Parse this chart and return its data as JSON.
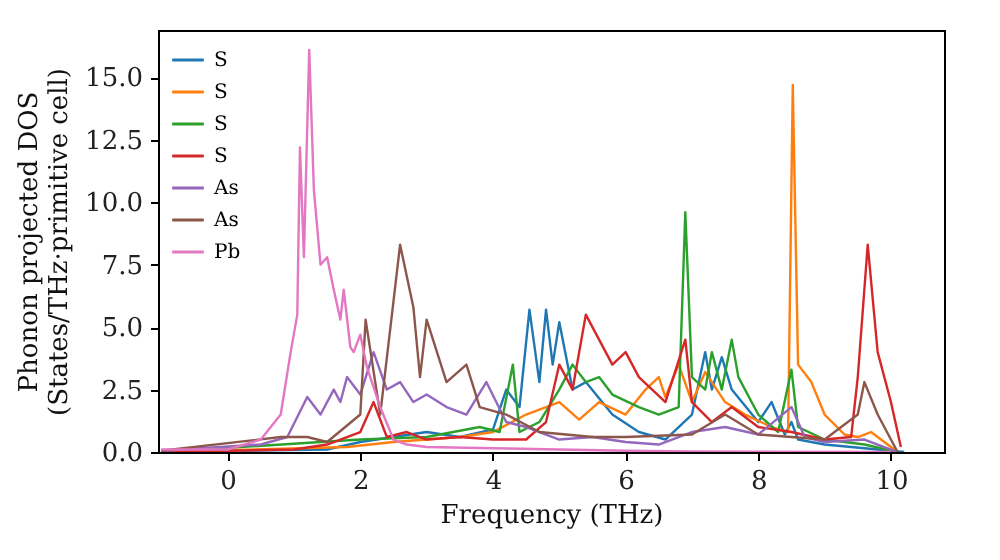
{
  "chart_data": {
    "type": "line",
    "xlabel": "Frequency (THz)",
    "ylabel": "Phonon projected DOS\n(States/THz·primitive cell)",
    "xlim": [
      -1.05,
      10.8
    ],
    "ylim": [
      0,
      16.9
    ],
    "xticks": [
      0,
      2,
      4,
      6,
      8,
      10
    ],
    "yticks": [
      {
        "value": 0,
        "label": "0.0"
      },
      {
        "value": 2.5,
        "label": "2.5"
      },
      {
        "value": 5,
        "label": "5.0"
      },
      {
        "value": 7.5,
        "label": "7.5"
      },
      {
        "value": 10,
        "label": "10.0"
      },
      {
        "value": 12.5,
        "label": "12.5"
      },
      {
        "value": 15,
        "label": "15.0"
      }
    ],
    "grid": false,
    "legend": "top left",
    "series": [
      {
        "name": "S",
        "color": "#1f77b4",
        "x": [
          -1,
          1.5,
          2,
          3,
          3.5,
          4,
          4.2,
          4.4,
          4.55,
          4.7,
          4.8,
          4.9,
          5.0,
          5.2,
          5.4,
          5.8,
          6.2,
          6.6,
          7.0,
          7.2,
          7.3,
          7.45,
          7.6,
          8.0,
          8.2,
          8.4,
          8.5,
          8.6,
          9.0,
          10,
          10.2
        ],
        "values": [
          0,
          0.1,
          0.4,
          0.8,
          0.6,
          0.9,
          2.5,
          1.8,
          5.7,
          2.8,
          5.7,
          3.5,
          5.2,
          2.5,
          2.8,
          1.5,
          0.8,
          0.5,
          1.5,
          4.0,
          2.5,
          3.8,
          2.5,
          1.2,
          2.0,
          0.7,
          1.2,
          0.5,
          0.3,
          0.05,
          0
        ]
      },
      {
        "name": "S",
        "color": "#ff7f0e",
        "x": [
          -1,
          1.8,
          2.5,
          3.5,
          4,
          4.5,
          5,
          5.3,
          5.6,
          6,
          6.3,
          6.5,
          6.6,
          6.8,
          7.0,
          7.2,
          7.5,
          7.8,
          8.2,
          8.45,
          8.52,
          8.6,
          8.8,
          9.0,
          9.3,
          9.5,
          9.7,
          10,
          10.1
        ],
        "values": [
          0,
          0.2,
          0.4,
          0.6,
          0.8,
          1.5,
          2.0,
          1.3,
          2.0,
          1.5,
          2.5,
          3.0,
          2.2,
          3.5,
          2.0,
          3.2,
          2.0,
          1.5,
          1.0,
          0.8,
          14.7,
          3.5,
          2.8,
          1.5,
          0.7,
          0.6,
          0.8,
          0.2,
          0
        ]
      },
      {
        "name": "S",
        "color": "#2ca02c",
        "x": [
          -1,
          2,
          3,
          3.8,
          4.1,
          4.3,
          4.4,
          4.7,
          5.0,
          5.2,
          5.4,
          5.6,
          5.8,
          6.2,
          6.5,
          6.8,
          6.9,
          7.0,
          7.2,
          7.3,
          7.45,
          7.6,
          7.7,
          8.0,
          8.3,
          8.5,
          8.6,
          9.0,
          9.6,
          10.1
        ],
        "values": [
          0,
          0.5,
          0.6,
          1.0,
          0.8,
          3.5,
          0.8,
          1.2,
          2.5,
          3.5,
          2.8,
          3.0,
          2.3,
          1.8,
          1.5,
          1.8,
          9.6,
          3.0,
          2.5,
          4.0,
          2.5,
          4.5,
          3.0,
          1.5,
          0.8,
          3.3,
          1.0,
          0.5,
          0.3,
          0
        ]
      },
      {
        "name": "S",
        "color": "#d62728",
        "x": [
          -1,
          1.0,
          1.5,
          2.0,
          2.2,
          2.4,
          2.7,
          3.0,
          3.5,
          4.0,
          4.5,
          4.8,
          5.0,
          5.2,
          5.4,
          5.6,
          5.8,
          6.0,
          6.2,
          6.4,
          6.6,
          6.9,
          7.0,
          7.3,
          7.6,
          8.0,
          8.5,
          9.0,
          9.4,
          9.5,
          9.65,
          9.8,
          10.0,
          10.15
        ],
        "values": [
          0,
          0.1,
          0.3,
          0.8,
          2.0,
          0.6,
          0.8,
          0.5,
          0.6,
          0.5,
          0.5,
          1.2,
          3.5,
          2.5,
          5.5,
          4.5,
          3.5,
          4.0,
          3.0,
          2.5,
          2.0,
          4.5,
          2.0,
          1.2,
          1.8,
          1.0,
          0.8,
          0.5,
          0.6,
          3.0,
          8.3,
          4.0,
          2.0,
          0.2
        ]
      },
      {
        "name": "As",
        "color": "#9467bd",
        "x": [
          -1,
          0.5,
          0.9,
          1.2,
          1.4,
          1.6,
          1.7,
          1.8,
          2.0,
          2.2,
          2.4,
          2.6,
          2.8,
          3.0,
          3.3,
          3.6,
          3.9,
          4.2,
          4.5,
          5,
          5.5,
          6,
          6.5,
          7,
          7.5,
          8,
          8.5,
          8.7,
          9.0,
          9.6,
          10,
          10.1
        ],
        "values": [
          0.05,
          0.3,
          0.6,
          2.2,
          1.5,
          2.5,
          2.0,
          3.0,
          2.3,
          4.0,
          2.5,
          2.8,
          2.0,
          2.3,
          1.8,
          1.5,
          2.8,
          1.2,
          1.0,
          0.5,
          0.6,
          0.4,
          0.3,
          0.8,
          1.0,
          0.7,
          1.8,
          0.6,
          0.4,
          0.5,
          0.1,
          0
        ]
      },
      {
        "name": "As",
        "color": "#8c564b",
        "x": [
          -1,
          0.8,
          1.2,
          1.5,
          2.0,
          2.08,
          2.3,
          2.6,
          2.8,
          2.9,
          3.0,
          3.3,
          3.6,
          3.8,
          4.2,
          4.7,
          5.5,
          6,
          7,
          7.5,
          8,
          8.5,
          9,
          9.5,
          9.6,
          9.8,
          10,
          10.1
        ],
        "values": [
          0.05,
          0.6,
          0.6,
          0.4,
          1.5,
          5.3,
          1.5,
          8.3,
          5.8,
          3.0,
          5.3,
          2.8,
          3.5,
          1.8,
          1.5,
          0.8,
          0.6,
          0.6,
          0.7,
          1.5,
          0.7,
          0.6,
          0.5,
          1.5,
          2.8,
          1.5,
          0.5,
          0
        ]
      },
      {
        "name": "Pb",
        "color": "#e377c2",
        "x": [
          -1,
          0,
          0.5,
          0.8,
          0.95,
          1.05,
          1.09,
          1.15,
          1.23,
          1.3,
          1.4,
          1.5,
          1.6,
          1.7,
          1.75,
          1.85,
          1.9,
          2.0,
          2.1,
          2.3,
          2.5,
          2.7,
          3,
          4,
          5,
          6,
          7,
          10
        ],
        "values": [
          0.1,
          0.1,
          0.5,
          1.5,
          4.0,
          5.5,
          12.2,
          7.8,
          16.1,
          10.5,
          7.5,
          7.8,
          6.5,
          5.3,
          6.5,
          4.2,
          4.0,
          4.7,
          3.4,
          1.8,
          0.5,
          0.3,
          0.2,
          0.15,
          0.1,
          0.05,
          0.02,
          0
        ]
      }
    ]
  }
}
